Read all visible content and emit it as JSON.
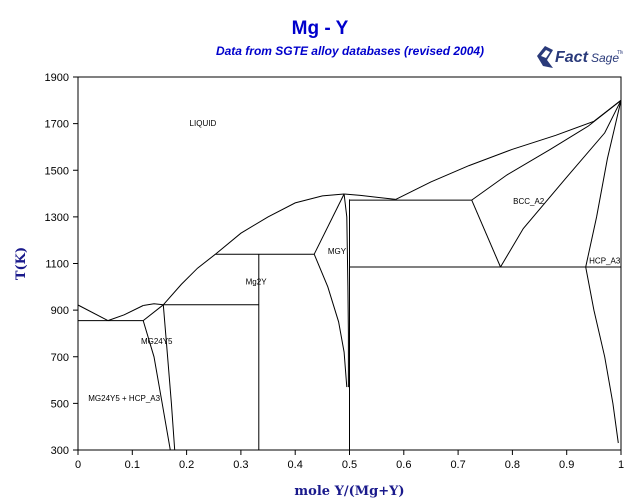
{
  "chart_data": {
    "type": "line",
    "title": "Mg - Y",
    "subtitle": "Data from SGTE alloy databases (revised 2004)",
    "xlabel": "mole Y/(Mg+Y)",
    "ylabel": "T(K)",
    "xlim": [
      0,
      1
    ],
    "ylim": [
      300,
      1900
    ],
    "x_ticks": [
      0,
      0.1,
      0.2,
      0.3,
      0.4,
      0.5,
      0.6,
      0.7,
      0.8,
      0.9,
      1
    ],
    "x_tick_labels": [
      "0",
      "0.1",
      "0.2",
      "0.3",
      "0.4",
      "0.5",
      "0.6",
      "0.7",
      "0.8",
      "0.9",
      "1"
    ],
    "y_ticks": [
      300,
      500,
      700,
      900,
      1100,
      1300,
      1500,
      1700,
      1900
    ],
    "y_tick_labels": [
      "300",
      "500",
      "700",
      "900",
      "1100",
      "1300",
      "1500",
      "1700",
      "1900"
    ],
    "grid": false,
    "series": [
      {
        "points": [
          [
            0,
            922
          ],
          [
            0.055,
            855
          ]
        ]
      },
      {
        "points": [
          [
            0.055,
            855
          ],
          [
            0.085,
            880
          ],
          [
            0.12,
            920
          ]
        ]
      },
      {
        "points": [
          [
            0.12,
            920
          ],
          [
            0.14,
            927
          ],
          [
            0.157,
            923
          ]
        ]
      },
      {
        "points": [
          [
            0.157,
            923
          ],
          [
            0.19,
            1010
          ],
          [
            0.22,
            1080
          ],
          [
            0.253,
            1140
          ]
        ]
      },
      {
        "points": [
          [
            0.253,
            1140
          ],
          [
            0.3,
            1230
          ],
          [
            0.35,
            1300
          ],
          [
            0.4,
            1360
          ],
          [
            0.45,
            1390
          ],
          [
            0.49,
            1398
          ]
        ]
      },
      {
        "points": [
          [
            0.49,
            1398
          ],
          [
            0.52,
            1392
          ],
          [
            0.585,
            1375
          ]
        ]
      },
      {
        "points": [
          [
            0.585,
            1375
          ],
          [
            0.65,
            1450
          ],
          [
            0.72,
            1520
          ],
          [
            0.8,
            1590
          ],
          [
            0.88,
            1650
          ],
          [
            0.95,
            1710
          ],
          [
            1,
            1800
          ]
        ]
      },
      {
        "points": [
          [
            0.725,
            1372
          ],
          [
            0.79,
            1480
          ],
          [
            0.87,
            1590
          ],
          [
            0.94,
            1690
          ],
          [
            1,
            1800
          ]
        ]
      },
      {
        "points": [
          [
            0.778,
            1085
          ],
          [
            0.82,
            1250
          ],
          [
            0.9,
            1470
          ],
          [
            0.97,
            1660
          ],
          [
            1,
            1800
          ]
        ]
      },
      {
        "points": [
          [
            0.725,
            1372
          ],
          [
            0.778,
            1085
          ]
        ]
      },
      {
        "points": [
          [
            0.935,
            1085
          ],
          [
            0.955,
            1300
          ],
          [
            0.975,
            1550
          ],
          [
            0.99,
            1700
          ],
          [
            1,
            1800
          ]
        ]
      },
      {
        "points": [
          [
            0.935,
            1085
          ],
          [
            0.95,
            900
          ],
          [
            0.97,
            700
          ],
          [
            0.985,
            500
          ],
          [
            0.995,
            330
          ]
        ]
      },
      {
        "points": [
          [
            0,
            855
          ],
          [
            0.12,
            855
          ]
        ]
      },
      {
        "points": [
          [
            0.12,
            855
          ],
          [
            0.157,
            923
          ]
        ]
      },
      {
        "points": [
          [
            0.157,
            923
          ],
          [
            0.333,
            923
          ]
        ]
      },
      {
        "points": [
          [
            0.12,
            855
          ],
          [
            0.14,
            700
          ],
          [
            0.155,
            500
          ],
          [
            0.17,
            300
          ]
        ]
      },
      {
        "points": [
          [
            0.157,
            923
          ],
          [
            0.165,
            700
          ],
          [
            0.172,
            500
          ],
          [
            0.178,
            300
          ]
        ]
      },
      {
        "points": [
          [
            0.333,
            1140
          ],
          [
            0.333,
            300
          ]
        ]
      },
      {
        "points": [
          [
            0.253,
            1140
          ],
          [
            0.435,
            1140
          ]
        ]
      },
      {
        "points": [
          [
            0.435,
            1140
          ],
          [
            0.49,
            1398
          ]
        ]
      },
      {
        "points": [
          [
            0.435,
            1140
          ],
          [
            0.46,
            1000
          ],
          [
            0.48,
            850
          ],
          [
            0.49,
            720
          ],
          [
            0.495,
            570
          ]
        ]
      },
      {
        "points": [
          [
            0.49,
            1398
          ],
          [
            0.495,
            1300
          ],
          [
            0.497,
            1000
          ],
          [
            0.498,
            800
          ],
          [
            0.498,
            570
          ]
        ]
      },
      {
        "points": [
          [
            0.5,
            1375
          ],
          [
            0.5,
            300
          ]
        ]
      },
      {
        "points": [
          [
            0.5,
            1372
          ],
          [
            0.725,
            1372
          ]
        ]
      },
      {
        "points": [
          [
            0.5,
            1085
          ],
          [
            1,
            1085
          ]
        ]
      }
    ],
    "labels": [
      {
        "text": "LIQUID",
        "x": 0.23,
        "y": 1690
      },
      {
        "text": "BCC_A2",
        "x": 0.83,
        "y": 1355
      },
      {
        "text": "HCP_A3",
        "x": 0.97,
        "y": 1100
      },
      {
        "text": "MGY",
        "x": 0.477,
        "y": 1140
      },
      {
        "text": "Mg2Y",
        "x": 0.328,
        "y": 1010
      },
      {
        "text": "MG24Y5",
        "x": 0.145,
        "y": 755
      },
      {
        "text": "MG24Y5 + HCP_A3",
        "x": 0.085,
        "y": 510
      }
    ]
  },
  "logo": {
    "text": "FactSage",
    "trademark": "TM"
  }
}
